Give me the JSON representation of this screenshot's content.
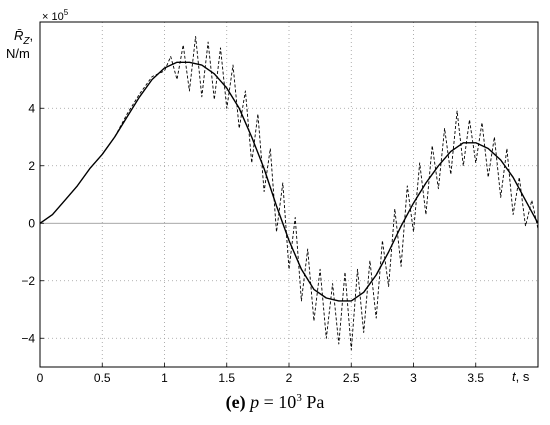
{
  "chart_data": {
    "type": "line",
    "title": "",
    "ylabel_symbol": "R̄",
    "ylabel_subscript": "Z",
    "ylabel_sep": ",",
    "ylabel_unit": "N/m",
    "xlabel_symbol": "t",
    "xlabel_unit": ", s",
    "y_multiplier": "× 10",
    "y_multiplier_exp": "5",
    "xlim": [
      0,
      4
    ],
    "ylim": [
      -5,
      7
    ],
    "x_ticks": [
      0,
      0.5,
      1,
      1.5,
      2,
      2.5,
      3,
      3.5
    ],
    "x_tick_labels": [
      "0",
      "0.5",
      "1",
      "1.5",
      "2",
      "2.5",
      "3",
      "3.5"
    ],
    "y_ticks": [
      -4,
      -2,
      0,
      2,
      4
    ],
    "y_tick_labels": [
      "−4",
      "−2",
      "0",
      "2",
      "4"
    ],
    "grid": true,
    "series": [
      {
        "style": "solid",
        "x": [
          0,
          0.1,
          0.2,
          0.3,
          0.4,
          0.5,
          0.6,
          0.7,
          0.8,
          0.9,
          1.0,
          1.1,
          1.2,
          1.3,
          1.4,
          1.5,
          1.6,
          1.7,
          1.8,
          1.9,
          2.0,
          2.1,
          2.2,
          2.3,
          2.4,
          2.5,
          2.6,
          2.7,
          2.8,
          2.9,
          3.0,
          3.1,
          3.2,
          3.3,
          3.4,
          3.5,
          3.6,
          3.7,
          3.8,
          3.9,
          4.0
        ],
        "y": [
          0,
          0.3,
          0.8,
          1.3,
          1.9,
          2.4,
          3.0,
          3.7,
          4.4,
          5.0,
          5.4,
          5.6,
          5.6,
          5.5,
          5.2,
          4.7,
          4.0,
          3.0,
          1.9,
          0.6,
          -0.6,
          -1.6,
          -2.3,
          -2.6,
          -2.7,
          -2.7,
          -2.4,
          -1.8,
          -1.0,
          -0.1,
          0.7,
          1.4,
          2.0,
          2.5,
          2.8,
          2.8,
          2.6,
          2.2,
          1.6,
          0.8,
          0.0
        ]
      },
      {
        "style": "dashed",
        "x": [
          0,
          0.1,
          0.2,
          0.3,
          0.4,
          0.5,
          0.6,
          0.7,
          0.8,
          0.9,
          1.0,
          1.05,
          1.1,
          1.15,
          1.2,
          1.25,
          1.3,
          1.35,
          1.4,
          1.45,
          1.5,
          1.55,
          1.6,
          1.65,
          1.7,
          1.75,
          1.8,
          1.85,
          1.9,
          1.95,
          2.0,
          2.05,
          2.1,
          2.15,
          2.2,
          2.25,
          2.3,
          2.35,
          2.4,
          2.45,
          2.5,
          2.55,
          2.6,
          2.65,
          2.7,
          2.75,
          2.8,
          2.85,
          2.9,
          2.95,
          3.0,
          3.05,
          3.1,
          3.15,
          3.2,
          3.25,
          3.3,
          3.35,
          3.4,
          3.45,
          3.5,
          3.55,
          3.6,
          3.65,
          3.7,
          3.75,
          3.8,
          3.85,
          3.9,
          3.95,
          4.0
        ],
        "y": [
          0,
          0.3,
          0.8,
          1.3,
          1.9,
          2.4,
          3.0,
          3.8,
          4.5,
          5.1,
          5.3,
          5.8,
          5.0,
          6.2,
          4.6,
          6.5,
          4.4,
          6.3,
          4.3,
          6.1,
          4.0,
          5.5,
          3.3,
          4.6,
          2.1,
          3.8,
          1.1,
          2.6,
          -0.3,
          1.4,
          -1.6,
          0.2,
          -2.7,
          -0.9,
          -3.4,
          -1.6,
          -4.0,
          -2.1,
          -4.2,
          -1.7,
          -4.4,
          -1.6,
          -3.8,
          -1.3,
          -3.3,
          -0.6,
          -2.2,
          0.5,
          -1.5,
          1.3,
          -0.3,
          2.1,
          0.3,
          2.7,
          1.2,
          3.3,
          1.7,
          3.9,
          2.0,
          3.6,
          2.1,
          3.5,
          1.6,
          3.0,
          0.9,
          2.6,
          0.3,
          1.6,
          -0.1,
          0.8,
          -0.2
        ]
      }
    ]
  },
  "caption": {
    "label": "(e)",
    "var": "p",
    "eq": " = 10",
    "exp": "3",
    "unit": " Pa"
  }
}
